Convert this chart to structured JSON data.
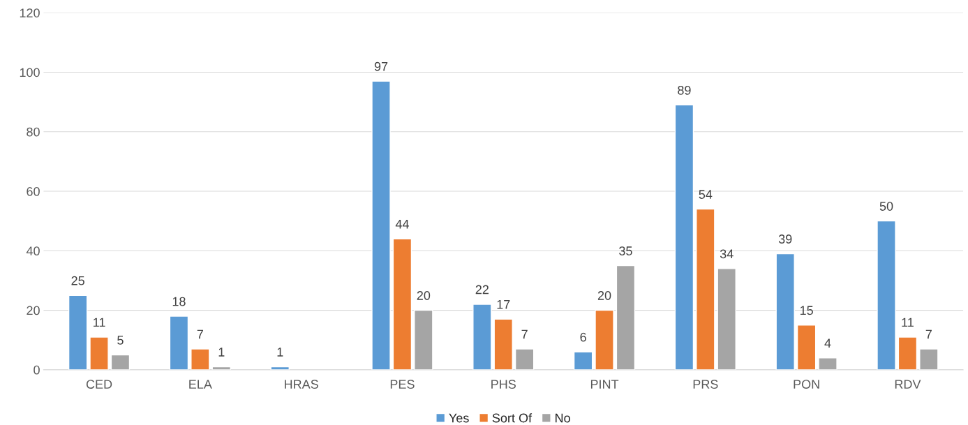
{
  "chart_data": {
    "type": "bar",
    "categories": [
      "CED",
      "ELA",
      "HRAS",
      "PES",
      "PHS",
      "PINT",
      "PRS",
      "PON",
      "RDV"
    ],
    "series": [
      {
        "name": "Yes",
        "color": "#5b9bd5",
        "values": [
          25,
          18,
          1,
          97,
          22,
          6,
          89,
          39,
          50
        ]
      },
      {
        "name": "Sort Of",
        "color": "#ed7d31",
        "values": [
          11,
          7,
          null,
          44,
          17,
          20,
          54,
          15,
          11
        ]
      },
      {
        "name": "No",
        "color": "#a5a5a5",
        "values": [
          5,
          1,
          null,
          20,
          7,
          35,
          34,
          4,
          7
        ]
      }
    ],
    "ylim": [
      0,
      120
    ],
    "yticks": [
      0,
      20,
      40,
      60,
      80,
      100,
      120
    ],
    "grid": "y",
    "legend": "bottom",
    "data_labels": true
  }
}
